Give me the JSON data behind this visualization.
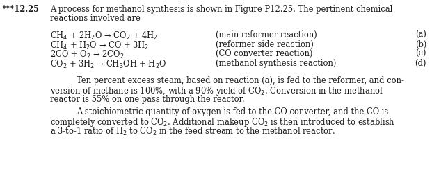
{
  "title_number": "***12.25",
  "intro_line1": "A process for methanol synthesis is shown in Figure P12.25. The pertinent chemical",
  "intro_line2": "reactions involved are",
  "reactions": [
    {
      "equation": "CH$_4$ + 2H$_2$O → CO$_2$ + 4H$_2$",
      "description": "(main reformer reaction)",
      "label": "(a)"
    },
    {
      "equation": "CH$_4$ + H$_2$O → CO + 3H$_2$",
      "description": "(reformer side reaction)",
      "label": "(b)"
    },
    {
      "equation": "2CO + O$_2$ → 2CO$_2$",
      "description": "(CO converter reaction)",
      "label": "(c)"
    },
    {
      "equation": "CO$_2$ + 3H$_2$ → CH$_3$OH + H$_2$O",
      "description": "(methanol synthesis reaction)",
      "label": "(d)"
    }
  ],
  "para1_line1": "Ten percent excess steam, based on reaction (a), is fed to the reformer, and con-",
  "para1_line2": "version of methane is 100%, with a 90% yield of CO$_2$. Conversion in the methanol",
  "para1_line3": "reactor is 55% on one pass through the reactor.",
  "para2_line1": "A stoichiometric quantity of oxygen is fed to the CO converter, and the CO is",
  "para2_line2": "completely converted to CO$_2$. Additional makeup CO$_2$ is then introduced to establish",
  "para2_line3": "a 3-to-1 ratio of H$_2$ to CO$_2$ in the feed stream to the methanol reactor.",
  "bg_color": "#ffffff",
  "text_color": "#1a1a1a",
  "font_size": 8.3
}
